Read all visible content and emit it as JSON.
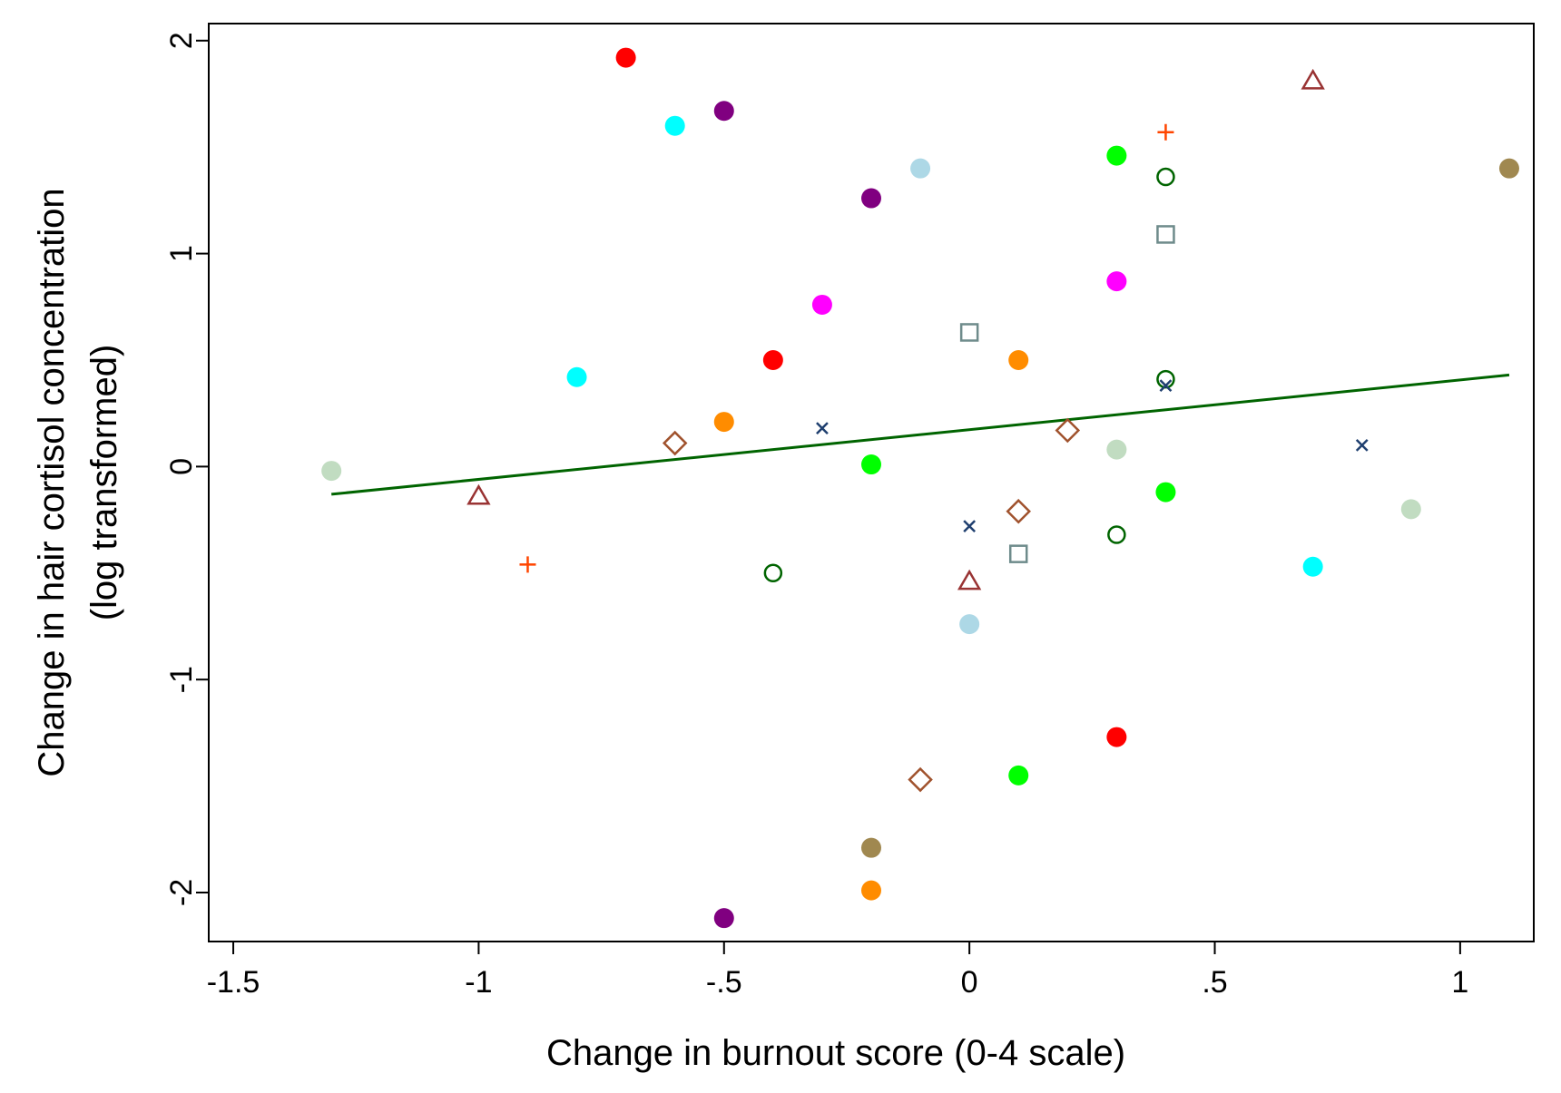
{
  "chart_data": {
    "type": "scatter",
    "title": "",
    "xlabel": "Change in burnout score (0-4 scale)",
    "ylabel_line1": "Change in hair cortisol concentration",
    "ylabel_line2": "(log transformed)",
    "xlim": [
      -1.55,
      1.15
    ],
    "ylim": [
      -2.23,
      2.08
    ],
    "x_ticks": [
      -1.5,
      -1,
      -0.5,
      0,
      0.5,
      1
    ],
    "x_tick_labels": [
      "-1.5",
      "-1",
      "-.5",
      "0",
      ".5",
      "1"
    ],
    "y_ticks": [
      -2,
      -1,
      0,
      1,
      2
    ],
    "y_tick_labels": [
      "-2",
      "-1",
      "0",
      "1",
      "2"
    ],
    "grid": false,
    "legend": "none",
    "fit_line": {
      "color": "#006400",
      "points": [
        [
          -1.3,
          -0.13
        ],
        [
          1.1,
          0.43
        ]
      ]
    },
    "points": [
      {
        "x": -0.7,
        "y": 1.92,
        "marker": "dot",
        "color": "#ff0000"
      },
      {
        "x": -0.4,
        "y": 0.5,
        "marker": "dot",
        "color": "#ff0000"
      },
      {
        "x": 0.3,
        "y": -1.27,
        "marker": "dot",
        "color": "#ff0000"
      },
      {
        "x": -0.6,
        "y": 1.6,
        "marker": "dot",
        "color": "#00ffff"
      },
      {
        "x": -0.8,
        "y": 0.42,
        "marker": "dot",
        "color": "#00ffff"
      },
      {
        "x": 0.7,
        "y": -0.47,
        "marker": "dot",
        "color": "#00ffff"
      },
      {
        "x": -0.5,
        "y": 1.67,
        "marker": "dot",
        "color": "#800080"
      },
      {
        "x": -0.2,
        "y": 1.26,
        "marker": "dot",
        "color": "#800080"
      },
      {
        "x": -0.5,
        "y": -2.12,
        "marker": "dot",
        "color": "#800080"
      },
      {
        "x": -0.1,
        "y": 1.4,
        "marker": "dot",
        "color": "#add8e6"
      },
      {
        "x": 0.0,
        "y": -0.74,
        "marker": "dot",
        "color": "#add8e6"
      },
      {
        "x": 0.3,
        "y": 1.46,
        "marker": "dot",
        "color": "#00ff00"
      },
      {
        "x": -0.2,
        "y": 0.01,
        "marker": "dot",
        "color": "#00ff00"
      },
      {
        "x": 0.4,
        "y": -0.12,
        "marker": "dot",
        "color": "#00ff00"
      },
      {
        "x": 0.1,
        "y": -1.45,
        "marker": "dot",
        "color": "#00ff00"
      },
      {
        "x": 1.1,
        "y": 1.4,
        "marker": "dot",
        "color": "#a08850"
      },
      {
        "x": -0.2,
        "y": -1.79,
        "marker": "dot",
        "color": "#a08850"
      },
      {
        "x": -0.3,
        "y": 0.76,
        "marker": "dot",
        "color": "#ff00ff"
      },
      {
        "x": 0.3,
        "y": 0.87,
        "marker": "dot",
        "color": "#ff00ff"
      },
      {
        "x": 0.1,
        "y": 0.5,
        "marker": "dot",
        "color": "#ff8c00"
      },
      {
        "x": -0.5,
        "y": 0.21,
        "marker": "dot",
        "color": "#ff8c00"
      },
      {
        "x": -0.2,
        "y": -1.99,
        "marker": "dot",
        "color": "#ff8c00"
      },
      {
        "x": -1.3,
        "y": -0.02,
        "marker": "dot",
        "color": "#c1dcc1"
      },
      {
        "x": 0.3,
        "y": 0.08,
        "marker": "dot",
        "color": "#c1dcc1"
      },
      {
        "x": 0.9,
        "y": -0.2,
        "marker": "dot",
        "color": "#c1dcc1"
      },
      {
        "x": 0.7,
        "y": 1.81,
        "marker": "triangle",
        "color": "#993333"
      },
      {
        "x": -1.0,
        "y": -0.14,
        "marker": "triangle",
        "color": "#993333"
      },
      {
        "x": 0.0,
        "y": -0.54,
        "marker": "triangle",
        "color": "#993333"
      },
      {
        "x": 0.4,
        "y": 1.57,
        "marker": "plus",
        "color": "#ff4500"
      },
      {
        "x": -0.9,
        "y": -0.46,
        "marker": "plus",
        "color": "#ff4500"
      },
      {
        "x": 0.4,
        "y": 1.36,
        "marker": "circle",
        "color": "#006400"
      },
      {
        "x": 0.4,
        "y": 0.41,
        "marker": "circle",
        "color": "#006400"
      },
      {
        "x": 0.3,
        "y": -0.32,
        "marker": "circle",
        "color": "#006400"
      },
      {
        "x": -0.4,
        "y": -0.5,
        "marker": "circle",
        "color": "#006400"
      },
      {
        "x": 0.4,
        "y": 1.09,
        "marker": "square",
        "color": "#6e8b8b"
      },
      {
        "x": 0.0,
        "y": 0.63,
        "marker": "square",
        "color": "#6e8b8b"
      },
      {
        "x": 0.1,
        "y": -0.41,
        "marker": "square",
        "color": "#6e8b8b"
      },
      {
        "x": -0.3,
        "y": 0.18,
        "marker": "x",
        "color": "#1f3f6f"
      },
      {
        "x": 0.4,
        "y": 0.38,
        "marker": "x",
        "color": "#1f3f6f"
      },
      {
        "x": 0.8,
        "y": 0.1,
        "marker": "x",
        "color": "#1f3f6f"
      },
      {
        "x": 0.0,
        "y": -0.28,
        "marker": "x",
        "color": "#1f3f6f"
      },
      {
        "x": -0.6,
        "y": 0.11,
        "marker": "diamond",
        "color": "#a0522d"
      },
      {
        "x": 0.2,
        "y": 0.17,
        "marker": "diamond",
        "color": "#a0522d"
      },
      {
        "x": 0.1,
        "y": -0.21,
        "marker": "diamond",
        "color": "#a0522d"
      },
      {
        "x": -0.1,
        "y": -1.47,
        "marker": "diamond",
        "color": "#a0522d"
      }
    ]
  }
}
